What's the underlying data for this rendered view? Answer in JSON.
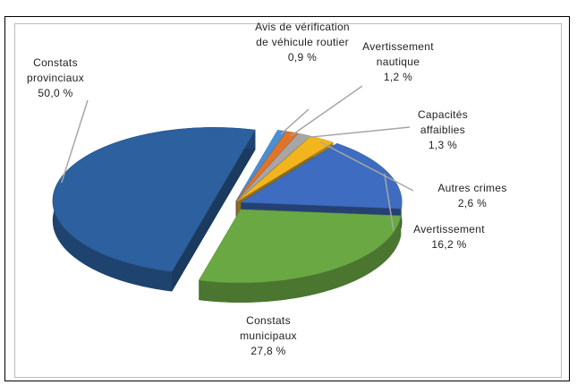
{
  "chart_data": {
    "type": "pie",
    "categories": [
      "Avis de vérification de véhicule routier",
      "Avertissement nautique",
      "Capacités affaiblies",
      "Autres crimes",
      "Avertissement",
      "Constats municipaux",
      "Constats provinciaux"
    ],
    "values": [
      0.9,
      1.2,
      1.3,
      2.6,
      16.2,
      27.8,
      50.0
    ],
    "value_labels": [
      "0,9 %",
      "1,2 %",
      "1,3 %",
      "2,6 %",
      "16,2 %",
      "27,8 %",
      "50,0 %"
    ],
    "colors": [
      "#4a8fd4",
      "#e0742a",
      "#a6a6a6",
      "#f2b51e",
      "#3e6cc0",
      "#6aa843",
      "#2c609e"
    ]
  }
}
